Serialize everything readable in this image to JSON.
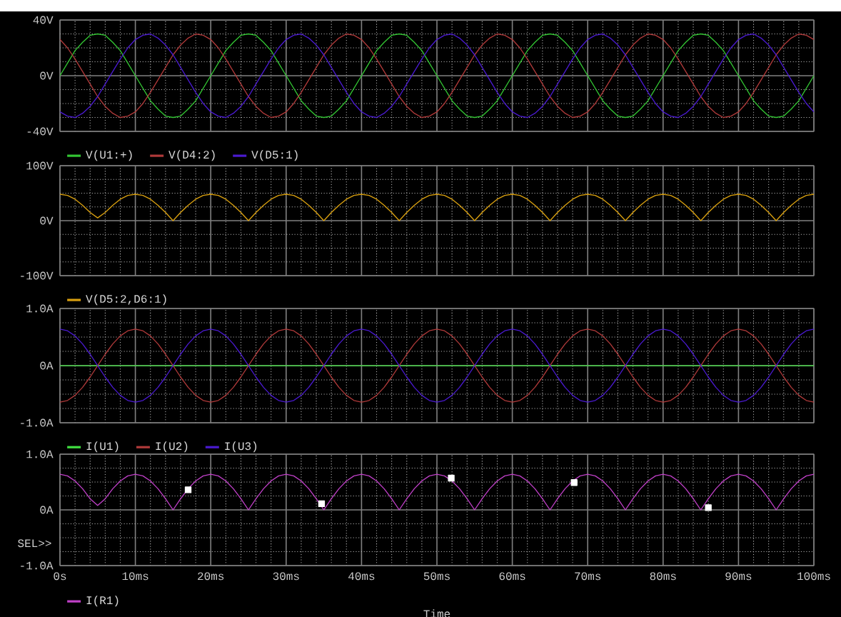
{
  "chart_data": [
    {
      "type": "line",
      "x": [
        0,
        1,
        2,
        3,
        4,
        5,
        6,
        7,
        8,
        9,
        10,
        11,
        12,
        13,
        14,
        15,
        16,
        17,
        18,
        19,
        20,
        21,
        22,
        23,
        24,
        25,
        26,
        27,
        28,
        29,
        30,
        31,
        32,
        33,
        34,
        35,
        36,
        37,
        38,
        39,
        40,
        41,
        42,
        43,
        44,
        45,
        46,
        47,
        48,
        49,
        50,
        51,
        52,
        53,
        54,
        55,
        56,
        57,
        58,
        59,
        60,
        61,
        62,
        63,
        64,
        65,
        66,
        67,
        68,
        69,
        70,
        71,
        72,
        73,
        74,
        75,
        76,
        77,
        78,
        79,
        80,
        81,
        82,
        83,
        84,
        85,
        86,
        87,
        88,
        89,
        90,
        91,
        92,
        93,
        94,
        95,
        96,
        97,
        98,
        99,
        100
      ],
      "xlim": [
        0,
        100
      ],
      "xticks": [
        {
          "value": 0,
          "label": null
        },
        {
          "value": 10,
          "label": null
        },
        {
          "value": 20,
          "label": null
        },
        {
          "value": 30,
          "label": null
        },
        {
          "value": 40,
          "label": null
        },
        {
          "value": 50,
          "label": null
        },
        {
          "value": 60,
          "label": null
        },
        {
          "value": 70,
          "label": null
        },
        {
          "value": 80,
          "label": null
        },
        {
          "value": 90,
          "label": null
        },
        {
          "value": 100,
          "label": null
        }
      ],
      "ylim": [
        -40,
        40
      ],
      "yticks": [
        {
          "value": -40,
          "label": "-40V"
        },
        {
          "value": 0,
          "label": "0V"
        },
        {
          "value": 40,
          "label": "40V"
        }
      ],
      "grid": true,
      "legend": "bottom left",
      "tick_labels": "y",
      "series": [
        {
          "name": "V(U1:+)",
          "color": "#33c633",
          "values": [
            0,
            9,
            18,
            24,
            29,
            30,
            29,
            24,
            18,
            9,
            0,
            -9,
            -18,
            -24,
            -29,
            -30,
            -29,
            -24,
            -18,
            -9,
            0,
            9,
            18,
            24,
            29,
            30,
            29,
            24,
            18,
            9,
            0,
            -9,
            -18,
            -24,
            -29,
            -30,
            -29,
            -24,
            -18,
            -9,
            0,
            9,
            18,
            24,
            29,
            30,
            29,
            24,
            18,
            9,
            0,
            -9,
            -18,
            -24,
            -29,
            -30,
            -29,
            -24,
            -18,
            -9,
            0,
            9,
            18,
            24,
            29,
            30,
            29,
            24,
            18,
            9,
            0,
            -9,
            -18,
            -24,
            -29,
            -30,
            -29,
            -24,
            -18,
            -9,
            0,
            9,
            18,
            24,
            29,
            30,
            29,
            24,
            18,
            9,
            0,
            -9,
            -18,
            -24,
            -29,
            -30,
            -29,
            -24,
            -18,
            -9,
            0
          ]
        },
        {
          "name": "V(D4:2)",
          "color": "#b03a3a",
          "values": [
            26,
            20,
            12,
            3,
            -6,
            -15,
            -22,
            -27,
            -30,
            -29,
            -26,
            -20,
            -12,
            -3,
            6,
            15,
            22,
            27,
            30,
            29,
            26,
            20,
            12,
            3,
            -6,
            -15,
            -22,
            -27,
            -30,
            -29,
            -26,
            -20,
            -12,
            -3,
            6,
            15,
            22,
            27,
            30,
            29,
            26,
            20,
            12,
            3,
            -6,
            -15,
            -22,
            -27,
            -30,
            -29,
            -26,
            -20,
            -12,
            -3,
            6,
            15,
            22,
            27,
            30,
            29,
            26,
            20,
            12,
            3,
            -6,
            -15,
            -22,
            -27,
            -30,
            -29,
            -26,
            -20,
            -12,
            -3,
            6,
            15,
            22,
            27,
            30,
            29,
            26,
            20,
            12,
            3,
            -6,
            -15,
            -22,
            -27,
            -30,
            -29,
            -26,
            -20,
            -12,
            -3,
            6,
            15,
            22,
            27,
            30,
            29,
            26
          ]
        },
        {
          "name": "V(D5:1)",
          "color": "#4a1ad0",
          "values": [
            -26,
            -29,
            -30,
            -27,
            -22,
            -15,
            -6,
            3,
            12,
            20,
            26,
            29,
            30,
            27,
            22,
            15,
            6,
            -3,
            -12,
            -20,
            -26,
            -29,
            -30,
            -27,
            -22,
            -15,
            -6,
            3,
            12,
            20,
            26,
            29,
            30,
            27,
            22,
            15,
            6,
            -3,
            -12,
            -20,
            -26,
            -29,
            -30,
            -27,
            -22,
            -15,
            -6,
            3,
            12,
            20,
            26,
            29,
            30,
            27,
            22,
            15,
            6,
            -3,
            -12,
            -20,
            -26,
            -29,
            -30,
            -27,
            -22,
            -15,
            -6,
            3,
            12,
            20,
            26,
            29,
            30,
            27,
            22,
            15,
            6,
            -3,
            -12,
            -20,
            -26,
            -29,
            -30,
            -27,
            -22,
            -15,
            -6,
            3,
            12,
            20,
            26,
            29,
            30,
            27,
            22,
            15,
            6,
            -3,
            -12,
            -20,
            -26
          ]
        }
      ]
    },
    {
      "type": "line",
      "x": [
        0,
        1,
        2,
        3,
        4,
        5,
        6,
        7,
        8,
        9,
        10,
        11,
        12,
        13,
        14,
        15,
        16,
        17,
        18,
        19,
        20,
        21,
        22,
        23,
        24,
        25,
        26,
        27,
        28,
        29,
        30,
        31,
        32,
        33,
        34,
        35,
        36,
        37,
        38,
        39,
        40,
        41,
        42,
        43,
        44,
        45,
        46,
        47,
        48,
        49,
        50,
        51,
        52,
        53,
        54,
        55,
        56,
        57,
        58,
        59,
        60,
        61,
        62,
        63,
        64,
        65,
        66,
        67,
        68,
        69,
        70,
        71,
        72,
        73,
        74,
        75,
        76,
        77,
        78,
        79,
        80,
        81,
        82,
        83,
        84,
        85,
        86,
        87,
        88,
        89,
        90,
        91,
        92,
        93,
        94,
        95,
        96,
        97,
        98,
        99,
        100
      ],
      "xlim": [
        0,
        100
      ],
      "xticks": [
        {
          "value": 0,
          "label": null
        },
        {
          "value": 10,
          "label": null
        },
        {
          "value": 20,
          "label": null
        },
        {
          "value": 30,
          "label": null
        },
        {
          "value": 40,
          "label": null
        },
        {
          "value": 50,
          "label": null
        },
        {
          "value": 60,
          "label": null
        },
        {
          "value": 70,
          "label": null
        },
        {
          "value": 80,
          "label": null
        },
        {
          "value": 90,
          "label": null
        },
        {
          "value": 100,
          "label": null
        }
      ],
      "ylim": [
        -100,
        100
      ],
      "yticks": [
        {
          "value": -100,
          "label": "-100V"
        },
        {
          "value": 0,
          "label": "0V"
        },
        {
          "value": 100,
          "label": "100V"
        }
      ],
      "grid": true,
      "legend": "bottom left",
      "tick_labels": "y",
      "series": [
        {
          "name": "V(D5:2,D6:1)",
          "color": "#d9a010",
          "values": [
            48,
            46,
            39,
            28,
            15,
            5,
            15,
            28,
            39,
            46,
            48,
            46,
            39,
            28,
            15,
            0,
            15,
            28,
            39,
            46,
            48,
            46,
            39,
            28,
            15,
            0,
            15,
            28,
            39,
            46,
            48,
            46,
            39,
            28,
            15,
            0,
            15,
            28,
            39,
            46,
            48,
            46,
            39,
            28,
            15,
            0,
            15,
            28,
            39,
            46,
            48,
            46,
            39,
            28,
            15,
            0,
            15,
            28,
            39,
            46,
            48,
            46,
            39,
            28,
            15,
            0,
            15,
            28,
            39,
            46,
            48,
            46,
            39,
            28,
            15,
            0,
            15,
            28,
            39,
            46,
            48,
            46,
            39,
            28,
            15,
            0,
            15,
            28,
            39,
            46,
            48,
            46,
            39,
            28,
            15,
            0,
            15,
            28,
            39,
            46,
            48
          ]
        }
      ]
    },
    {
      "type": "line",
      "x": [
        0,
        1,
        2,
        3,
        4,
        5,
        6,
        7,
        8,
        9,
        10,
        11,
        12,
        13,
        14,
        15,
        16,
        17,
        18,
        19,
        20,
        21,
        22,
        23,
        24,
        25,
        26,
        27,
        28,
        29,
        30,
        31,
        32,
        33,
        34,
        35,
        36,
        37,
        38,
        39,
        40,
        41,
        42,
        43,
        44,
        45,
        46,
        47,
        48,
        49,
        50,
        51,
        52,
        53,
        54,
        55,
        56,
        57,
        58,
        59,
        60,
        61,
        62,
        63,
        64,
        65,
        66,
        67,
        68,
        69,
        70,
        71,
        72,
        73,
        74,
        75,
        76,
        77,
        78,
        79,
        80,
        81,
        82,
        83,
        84,
        85,
        86,
        87,
        88,
        89,
        90,
        91,
        92,
        93,
        94,
        95,
        96,
        97,
        98,
        99,
        100
      ],
      "xlim": [
        0,
        100
      ],
      "xticks": [
        {
          "value": 0,
          "label": null
        },
        {
          "value": 10,
          "label": null
        },
        {
          "value": 20,
          "label": null
        },
        {
          "value": 30,
          "label": null
        },
        {
          "value": 40,
          "label": null
        },
        {
          "value": 50,
          "label": null
        },
        {
          "value": 60,
          "label": null
        },
        {
          "value": 70,
          "label": null
        },
        {
          "value": 80,
          "label": null
        },
        {
          "value": 90,
          "label": null
        },
        {
          "value": 100,
          "label": null
        }
      ],
      "ylim": [
        -1,
        1
      ],
      "yticks": [
        {
          "value": -1,
          "label": "-1.0A"
        },
        {
          "value": 0,
          "label": "0A"
        },
        {
          "value": 1,
          "label": "1.0A"
        }
      ],
      "grid": true,
      "legend": "bottom left",
      "tick_labels": "y",
      "series": [
        {
          "name": "I(U1)",
          "color": "#40e040",
          "values": [
            0,
            0,
            0,
            0,
            0,
            0,
            0,
            0,
            0,
            0,
            0,
            0,
            0,
            0,
            0,
            0,
            0,
            0,
            0,
            0,
            0,
            0,
            0,
            0,
            0,
            0,
            0,
            0,
            0,
            0,
            0,
            0,
            0,
            0,
            0,
            0,
            0,
            0,
            0,
            0,
            0,
            0,
            0,
            0,
            0,
            0,
            0,
            0,
            0,
            0,
            0,
            0,
            0,
            0,
            0,
            0,
            0,
            0,
            0,
            0,
            0,
            0,
            0,
            0,
            0,
            0,
            0,
            0,
            0,
            0,
            0,
            0,
            0,
            0,
            0,
            0,
            0,
            0,
            0,
            0,
            0,
            0,
            0,
            0,
            0,
            0,
            0,
            0,
            0,
            0,
            0,
            0,
            0,
            0,
            0,
            0,
            0,
            0,
            0,
            0,
            0
          ]
        },
        {
          "name": "I(U2)",
          "color": "#b03a3a",
          "values": [
            -0.64,
            -0.61,
            -0.52,
            -0.38,
            -0.2,
            0,
            0.2,
            0.38,
            0.52,
            0.61,
            0.64,
            0.61,
            0.52,
            0.38,
            0.2,
            0,
            -0.2,
            -0.38,
            -0.52,
            -0.61,
            -0.64,
            -0.61,
            -0.52,
            -0.38,
            -0.2,
            0,
            0.2,
            0.38,
            0.52,
            0.61,
            0.64,
            0.61,
            0.52,
            0.38,
            0.2,
            0,
            -0.2,
            -0.38,
            -0.52,
            -0.61,
            -0.64,
            -0.61,
            -0.52,
            -0.38,
            -0.2,
            0,
            0.2,
            0.38,
            0.52,
            0.61,
            0.64,
            0.61,
            0.52,
            0.38,
            0.2,
            0,
            -0.2,
            -0.38,
            -0.52,
            -0.61,
            -0.64,
            -0.61,
            -0.52,
            -0.38,
            -0.2,
            0,
            0.2,
            0.38,
            0.52,
            0.61,
            0.64,
            0.61,
            0.52,
            0.38,
            0.2,
            0,
            -0.2,
            -0.38,
            -0.52,
            -0.61,
            -0.64,
            -0.61,
            -0.52,
            -0.38,
            -0.2,
            0,
            0.2,
            0.38,
            0.52,
            0.61,
            0.64,
            0.61,
            0.52,
            0.38,
            0.2,
            0,
            -0.2,
            -0.38,
            -0.52,
            -0.61,
            -0.64
          ]
        },
        {
          "name": "I(U3)",
          "color": "#4a1ad0",
          "values": [
            0.64,
            0.61,
            0.52,
            0.38,
            0.2,
            0,
            -0.2,
            -0.38,
            -0.52,
            -0.61,
            -0.64,
            -0.61,
            -0.52,
            -0.38,
            -0.2,
            0,
            0.2,
            0.38,
            0.52,
            0.61,
            0.64,
            0.61,
            0.52,
            0.38,
            0.2,
            0,
            -0.2,
            -0.38,
            -0.52,
            -0.61,
            -0.64,
            -0.61,
            -0.52,
            -0.38,
            -0.2,
            0,
            0.2,
            0.38,
            0.52,
            0.61,
            0.64,
            0.61,
            0.52,
            0.38,
            0.2,
            0,
            -0.2,
            -0.38,
            -0.52,
            -0.61,
            -0.64,
            -0.61,
            -0.52,
            -0.38,
            -0.2,
            0,
            0.2,
            0.38,
            0.52,
            0.61,
            0.64,
            0.61,
            0.52,
            0.38,
            0.2,
            0,
            -0.2,
            -0.38,
            -0.52,
            -0.61,
            -0.64,
            -0.61,
            -0.52,
            -0.38,
            -0.2,
            0,
            0.2,
            0.38,
            0.52,
            0.61,
            0.64,
            0.61,
            0.52,
            0.38,
            0.2,
            0,
            -0.2,
            -0.38,
            -0.52,
            -0.61,
            -0.64,
            -0.61,
            -0.52,
            -0.38,
            -0.2,
            0,
            0.2,
            0.38,
            0.52,
            0.61,
            0.64
          ]
        }
      ]
    },
    {
      "type": "line",
      "x": [
        0,
        1,
        2,
        3,
        4,
        5,
        6,
        7,
        8,
        9,
        10,
        11,
        12,
        13,
        14,
        15,
        16,
        17,
        18,
        19,
        20,
        21,
        22,
        23,
        24,
        25,
        26,
        27,
        28,
        29,
        30,
        31,
        32,
        33,
        34,
        35,
        36,
        37,
        38,
        39,
        40,
        41,
        42,
        43,
        44,
        45,
        46,
        47,
        48,
        49,
        50,
        51,
        52,
        53,
        54,
        55,
        56,
        57,
        58,
        59,
        60,
        61,
        62,
        63,
        64,
        65,
        66,
        67,
        68,
        69,
        70,
        71,
        72,
        73,
        74,
        75,
        76,
        77,
        78,
        79,
        80,
        81,
        82,
        83,
        84,
        85,
        86,
        87,
        88,
        89,
        90,
        91,
        92,
        93,
        94,
        95,
        96,
        97,
        98,
        99,
        100
      ],
      "xlim": [
        0,
        100
      ],
      "xticks": [
        {
          "value": 0,
          "label": "0s"
        },
        {
          "value": 10,
          "label": "10ms"
        },
        {
          "value": 20,
          "label": "20ms"
        },
        {
          "value": 30,
          "label": "30ms"
        },
        {
          "value": 40,
          "label": "40ms"
        },
        {
          "value": 50,
          "label": "50ms"
        },
        {
          "value": 60,
          "label": "60ms"
        },
        {
          "value": 70,
          "label": "70ms"
        },
        {
          "value": 80,
          "label": "80ms"
        },
        {
          "value": 90,
          "label": "90ms"
        },
        {
          "value": 100,
          "label": "100ms"
        }
      ],
      "ylim": [
        -1,
        1
      ],
      "yticks": [
        {
          "value": -1,
          "label": "-1.0A"
        },
        {
          "value": 0,
          "label": "0A"
        },
        {
          "value": 1,
          "label": "1.0A"
        }
      ],
      "grid": true,
      "legend": "bottom left",
      "xlabel": "Time",
      "annotations": [
        "SEL>>"
      ],
      "series": [
        {
          "name": "I(R1)",
          "color": "#c040c8",
          "values": [
            0.64,
            0.61,
            0.52,
            0.38,
            0.2,
            0.08,
            0.2,
            0.38,
            0.52,
            0.61,
            0.64,
            0.61,
            0.52,
            0.38,
            0.2,
            0,
            0.2,
            0.38,
            0.52,
            0.61,
            0.64,
            0.61,
            0.52,
            0.38,
            0.2,
            0,
            0.2,
            0.38,
            0.52,
            0.61,
            0.64,
            0.61,
            0.52,
            0.38,
            0.2,
            0,
            0.2,
            0.38,
            0.52,
            0.61,
            0.64,
            0.61,
            0.52,
            0.38,
            0.2,
            0,
            0.2,
            0.38,
            0.52,
            0.61,
            0.64,
            0.61,
            0.52,
            0.38,
            0.2,
            0,
            0.2,
            0.38,
            0.52,
            0.61,
            0.64,
            0.61,
            0.52,
            0.38,
            0.2,
            0,
            0.2,
            0.38,
            0.52,
            0.61,
            0.64,
            0.61,
            0.52,
            0.38,
            0.2,
            0,
            0.2,
            0.38,
            0.52,
            0.61,
            0.64,
            0.61,
            0.52,
            0.38,
            0.2,
            0,
            0.2,
            0.38,
            0.52,
            0.61,
            0.64,
            0.61,
            0.52,
            0.38,
            0.2,
            0,
            0.2,
            0.38,
            0.52,
            0.61,
            0.64
          ]
        },
        {
          "type": "scatter",
          "color": "#ffffff",
          "marker": "square",
          "x": [
            17,
            34.7,
            51.9,
            68.2,
            86
          ],
          "values": [
            0.36,
            0.11,
            0.57,
            0.49,
            0.04
          ]
        }
      ]
    }
  ]
}
